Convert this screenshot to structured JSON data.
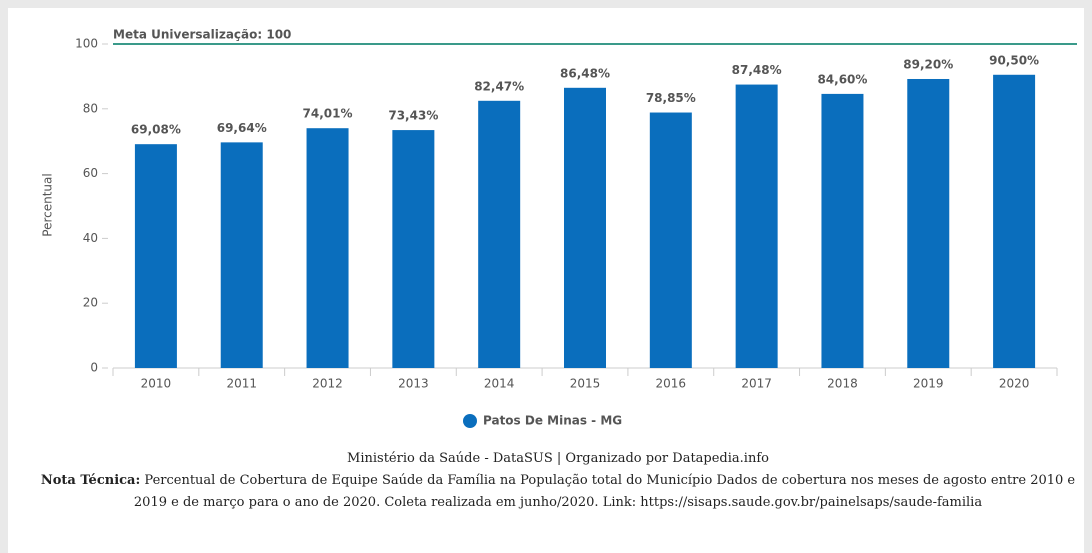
{
  "chart_data": {
    "type": "bar",
    "ylabel": "Percentual",
    "categories": [
      "2010",
      "2011",
      "2012",
      "2013",
      "2014",
      "2015",
      "2016",
      "2017",
      "2018",
      "2019",
      "2020"
    ],
    "series": [
      {
        "name": "Patos De Minas - MG",
        "color": "#0a6ebd",
        "values": [
          69.08,
          69.64,
          74.01,
          73.43,
          82.47,
          86.48,
          78.85,
          87.48,
          84.6,
          89.2,
          90.5
        ],
        "value_labels": [
          "69,08%",
          "69,64%",
          "74,01%",
          "73,43%",
          "82,47%",
          "86,48%",
          "78,85%",
          "87,48%",
          "84,60%",
          "89,20%",
          "90,50%"
        ]
      }
    ],
    "ylim": [
      0,
      100
    ],
    "yticks": [
      0,
      20,
      40,
      60,
      80,
      100
    ],
    "reference_line": {
      "label": "Meta Universalização: 100",
      "value": 100,
      "color": "#3a9a8a"
    },
    "legend": "bottom",
    "source": "Ministério da Saúde - DataSUS | Organizado por Datapedia.info",
    "note_label": "Nota Técnica:",
    "note": "Percentual de Cobertura de Equipe Saúde da Família na População total do Município Dados de cobertura nos meses de agosto entre 2010 e 2019 e de março para o ano de 2020. Coleta realizada em junho/2020. Link: https://sisaps.saude.gov.br/painelsaps/saude-familia"
  }
}
